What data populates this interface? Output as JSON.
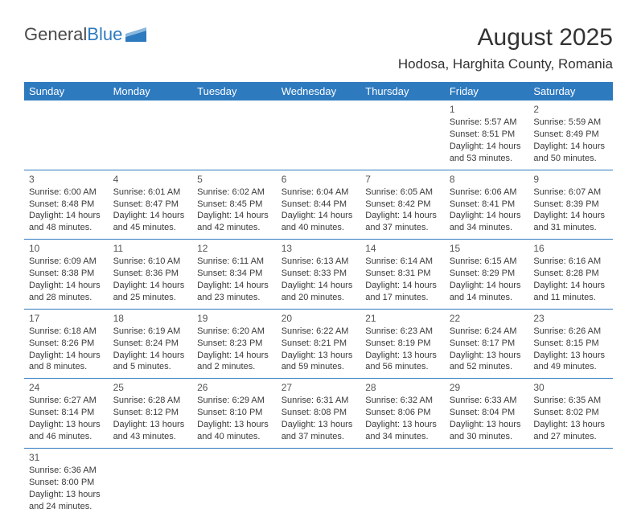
{
  "logo": {
    "text_a": "General",
    "text_b": "Blue"
  },
  "title": "August 2025",
  "location": "Hodosa, Harghita County, Romania",
  "colors": {
    "header_bg": "#2e7abf",
    "header_fg": "#ffffff",
    "rule": "#2e7abf",
    "text": "#3a3a3a"
  },
  "weekdays": [
    "Sunday",
    "Monday",
    "Tuesday",
    "Wednesday",
    "Thursday",
    "Friday",
    "Saturday"
  ],
  "weeks": [
    [
      null,
      null,
      null,
      null,
      null,
      {
        "n": "1",
        "sr": "Sunrise: 5:57 AM",
        "ss": "Sunset: 8:51 PM",
        "dl": "Daylight: 14 hours and 53 minutes."
      },
      {
        "n": "2",
        "sr": "Sunrise: 5:59 AM",
        "ss": "Sunset: 8:49 PM",
        "dl": "Daylight: 14 hours and 50 minutes."
      }
    ],
    [
      {
        "n": "3",
        "sr": "Sunrise: 6:00 AM",
        "ss": "Sunset: 8:48 PM",
        "dl": "Daylight: 14 hours and 48 minutes."
      },
      {
        "n": "4",
        "sr": "Sunrise: 6:01 AM",
        "ss": "Sunset: 8:47 PM",
        "dl": "Daylight: 14 hours and 45 minutes."
      },
      {
        "n": "5",
        "sr": "Sunrise: 6:02 AM",
        "ss": "Sunset: 8:45 PM",
        "dl": "Daylight: 14 hours and 42 minutes."
      },
      {
        "n": "6",
        "sr": "Sunrise: 6:04 AM",
        "ss": "Sunset: 8:44 PM",
        "dl": "Daylight: 14 hours and 40 minutes."
      },
      {
        "n": "7",
        "sr": "Sunrise: 6:05 AM",
        "ss": "Sunset: 8:42 PM",
        "dl": "Daylight: 14 hours and 37 minutes."
      },
      {
        "n": "8",
        "sr": "Sunrise: 6:06 AM",
        "ss": "Sunset: 8:41 PM",
        "dl": "Daylight: 14 hours and 34 minutes."
      },
      {
        "n": "9",
        "sr": "Sunrise: 6:07 AM",
        "ss": "Sunset: 8:39 PM",
        "dl": "Daylight: 14 hours and 31 minutes."
      }
    ],
    [
      {
        "n": "10",
        "sr": "Sunrise: 6:09 AM",
        "ss": "Sunset: 8:38 PM",
        "dl": "Daylight: 14 hours and 28 minutes."
      },
      {
        "n": "11",
        "sr": "Sunrise: 6:10 AM",
        "ss": "Sunset: 8:36 PM",
        "dl": "Daylight: 14 hours and 25 minutes."
      },
      {
        "n": "12",
        "sr": "Sunrise: 6:11 AM",
        "ss": "Sunset: 8:34 PM",
        "dl": "Daylight: 14 hours and 23 minutes."
      },
      {
        "n": "13",
        "sr": "Sunrise: 6:13 AM",
        "ss": "Sunset: 8:33 PM",
        "dl": "Daylight: 14 hours and 20 minutes."
      },
      {
        "n": "14",
        "sr": "Sunrise: 6:14 AM",
        "ss": "Sunset: 8:31 PM",
        "dl": "Daylight: 14 hours and 17 minutes."
      },
      {
        "n": "15",
        "sr": "Sunrise: 6:15 AM",
        "ss": "Sunset: 8:29 PM",
        "dl": "Daylight: 14 hours and 14 minutes."
      },
      {
        "n": "16",
        "sr": "Sunrise: 6:16 AM",
        "ss": "Sunset: 8:28 PM",
        "dl": "Daylight: 14 hours and 11 minutes."
      }
    ],
    [
      {
        "n": "17",
        "sr": "Sunrise: 6:18 AM",
        "ss": "Sunset: 8:26 PM",
        "dl": "Daylight: 14 hours and 8 minutes."
      },
      {
        "n": "18",
        "sr": "Sunrise: 6:19 AM",
        "ss": "Sunset: 8:24 PM",
        "dl": "Daylight: 14 hours and 5 minutes."
      },
      {
        "n": "19",
        "sr": "Sunrise: 6:20 AM",
        "ss": "Sunset: 8:23 PM",
        "dl": "Daylight: 14 hours and 2 minutes."
      },
      {
        "n": "20",
        "sr": "Sunrise: 6:22 AM",
        "ss": "Sunset: 8:21 PM",
        "dl": "Daylight: 13 hours and 59 minutes."
      },
      {
        "n": "21",
        "sr": "Sunrise: 6:23 AM",
        "ss": "Sunset: 8:19 PM",
        "dl": "Daylight: 13 hours and 56 minutes."
      },
      {
        "n": "22",
        "sr": "Sunrise: 6:24 AM",
        "ss": "Sunset: 8:17 PM",
        "dl": "Daylight: 13 hours and 52 minutes."
      },
      {
        "n": "23",
        "sr": "Sunrise: 6:26 AM",
        "ss": "Sunset: 8:15 PM",
        "dl": "Daylight: 13 hours and 49 minutes."
      }
    ],
    [
      {
        "n": "24",
        "sr": "Sunrise: 6:27 AM",
        "ss": "Sunset: 8:14 PM",
        "dl": "Daylight: 13 hours and 46 minutes."
      },
      {
        "n": "25",
        "sr": "Sunrise: 6:28 AM",
        "ss": "Sunset: 8:12 PM",
        "dl": "Daylight: 13 hours and 43 minutes."
      },
      {
        "n": "26",
        "sr": "Sunrise: 6:29 AM",
        "ss": "Sunset: 8:10 PM",
        "dl": "Daylight: 13 hours and 40 minutes."
      },
      {
        "n": "27",
        "sr": "Sunrise: 6:31 AM",
        "ss": "Sunset: 8:08 PM",
        "dl": "Daylight: 13 hours and 37 minutes."
      },
      {
        "n": "28",
        "sr": "Sunrise: 6:32 AM",
        "ss": "Sunset: 8:06 PM",
        "dl": "Daylight: 13 hours and 34 minutes."
      },
      {
        "n": "29",
        "sr": "Sunrise: 6:33 AM",
        "ss": "Sunset: 8:04 PM",
        "dl": "Daylight: 13 hours and 30 minutes."
      },
      {
        "n": "30",
        "sr": "Sunrise: 6:35 AM",
        "ss": "Sunset: 8:02 PM",
        "dl": "Daylight: 13 hours and 27 minutes."
      }
    ],
    [
      {
        "n": "31",
        "sr": "Sunrise: 6:36 AM",
        "ss": "Sunset: 8:00 PM",
        "dl": "Daylight: 13 hours and 24 minutes."
      },
      null,
      null,
      null,
      null,
      null,
      null
    ]
  ]
}
